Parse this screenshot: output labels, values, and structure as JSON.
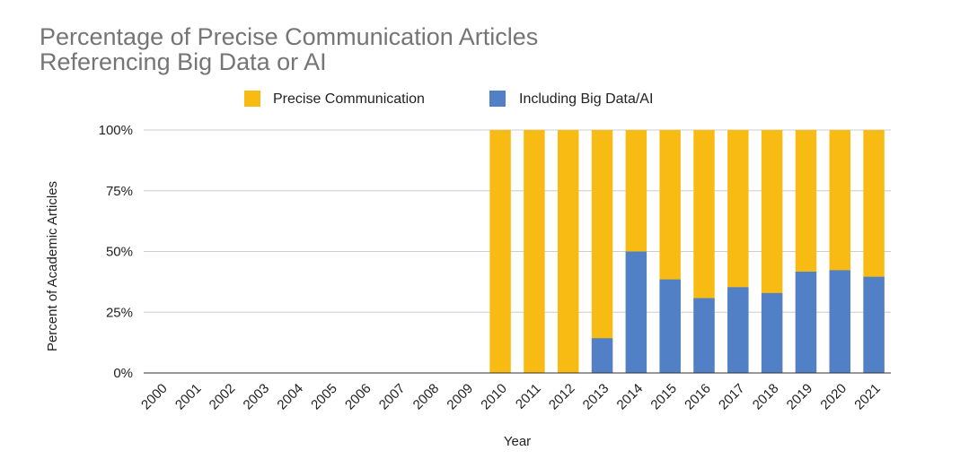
{
  "chart_data": {
    "type": "bar",
    "stacked": false,
    "overlapped": true,
    "title_lines": [
      "Percentage of Precise Communication Articles",
      "Referencing Big Data or AI"
    ],
    "xlabel": "Year",
    "ylabel": "Percent of Academic Articles",
    "ylim": [
      0,
      100
    ],
    "yticks": [
      0,
      25,
      50,
      75,
      100
    ],
    "ytick_labels": [
      "0%",
      "25%",
      "50%",
      "75%",
      "100%"
    ],
    "grid": true,
    "legend_position": "top",
    "categories": [
      "2000",
      "2001",
      "2002",
      "2003",
      "2004",
      "2005",
      "2006",
      "2007",
      "2008",
      "2009",
      "2010",
      "2011",
      "2012",
      "2013",
      "2014",
      "2015",
      "2016",
      "2017",
      "2018",
      "2019",
      "2020",
      "2021"
    ],
    "series": [
      {
        "name": "Precise Communication",
        "color": "#F8BB13",
        "values": [
          0,
          0,
          0,
          0,
          0,
          0,
          0,
          0,
          0,
          0,
          100,
          100,
          100,
          100,
          100,
          100,
          100,
          100,
          100,
          100,
          100,
          100
        ]
      },
      {
        "name": "Including Big Data/AI",
        "color": "#5180C6",
        "values": [
          0,
          0,
          0,
          0,
          0,
          0,
          0,
          0,
          0,
          0,
          0,
          0,
          0,
          14.3,
          50,
          38.5,
          30.8,
          35.3,
          32.9,
          41.7,
          42.3,
          39.6
        ]
      }
    ]
  }
}
